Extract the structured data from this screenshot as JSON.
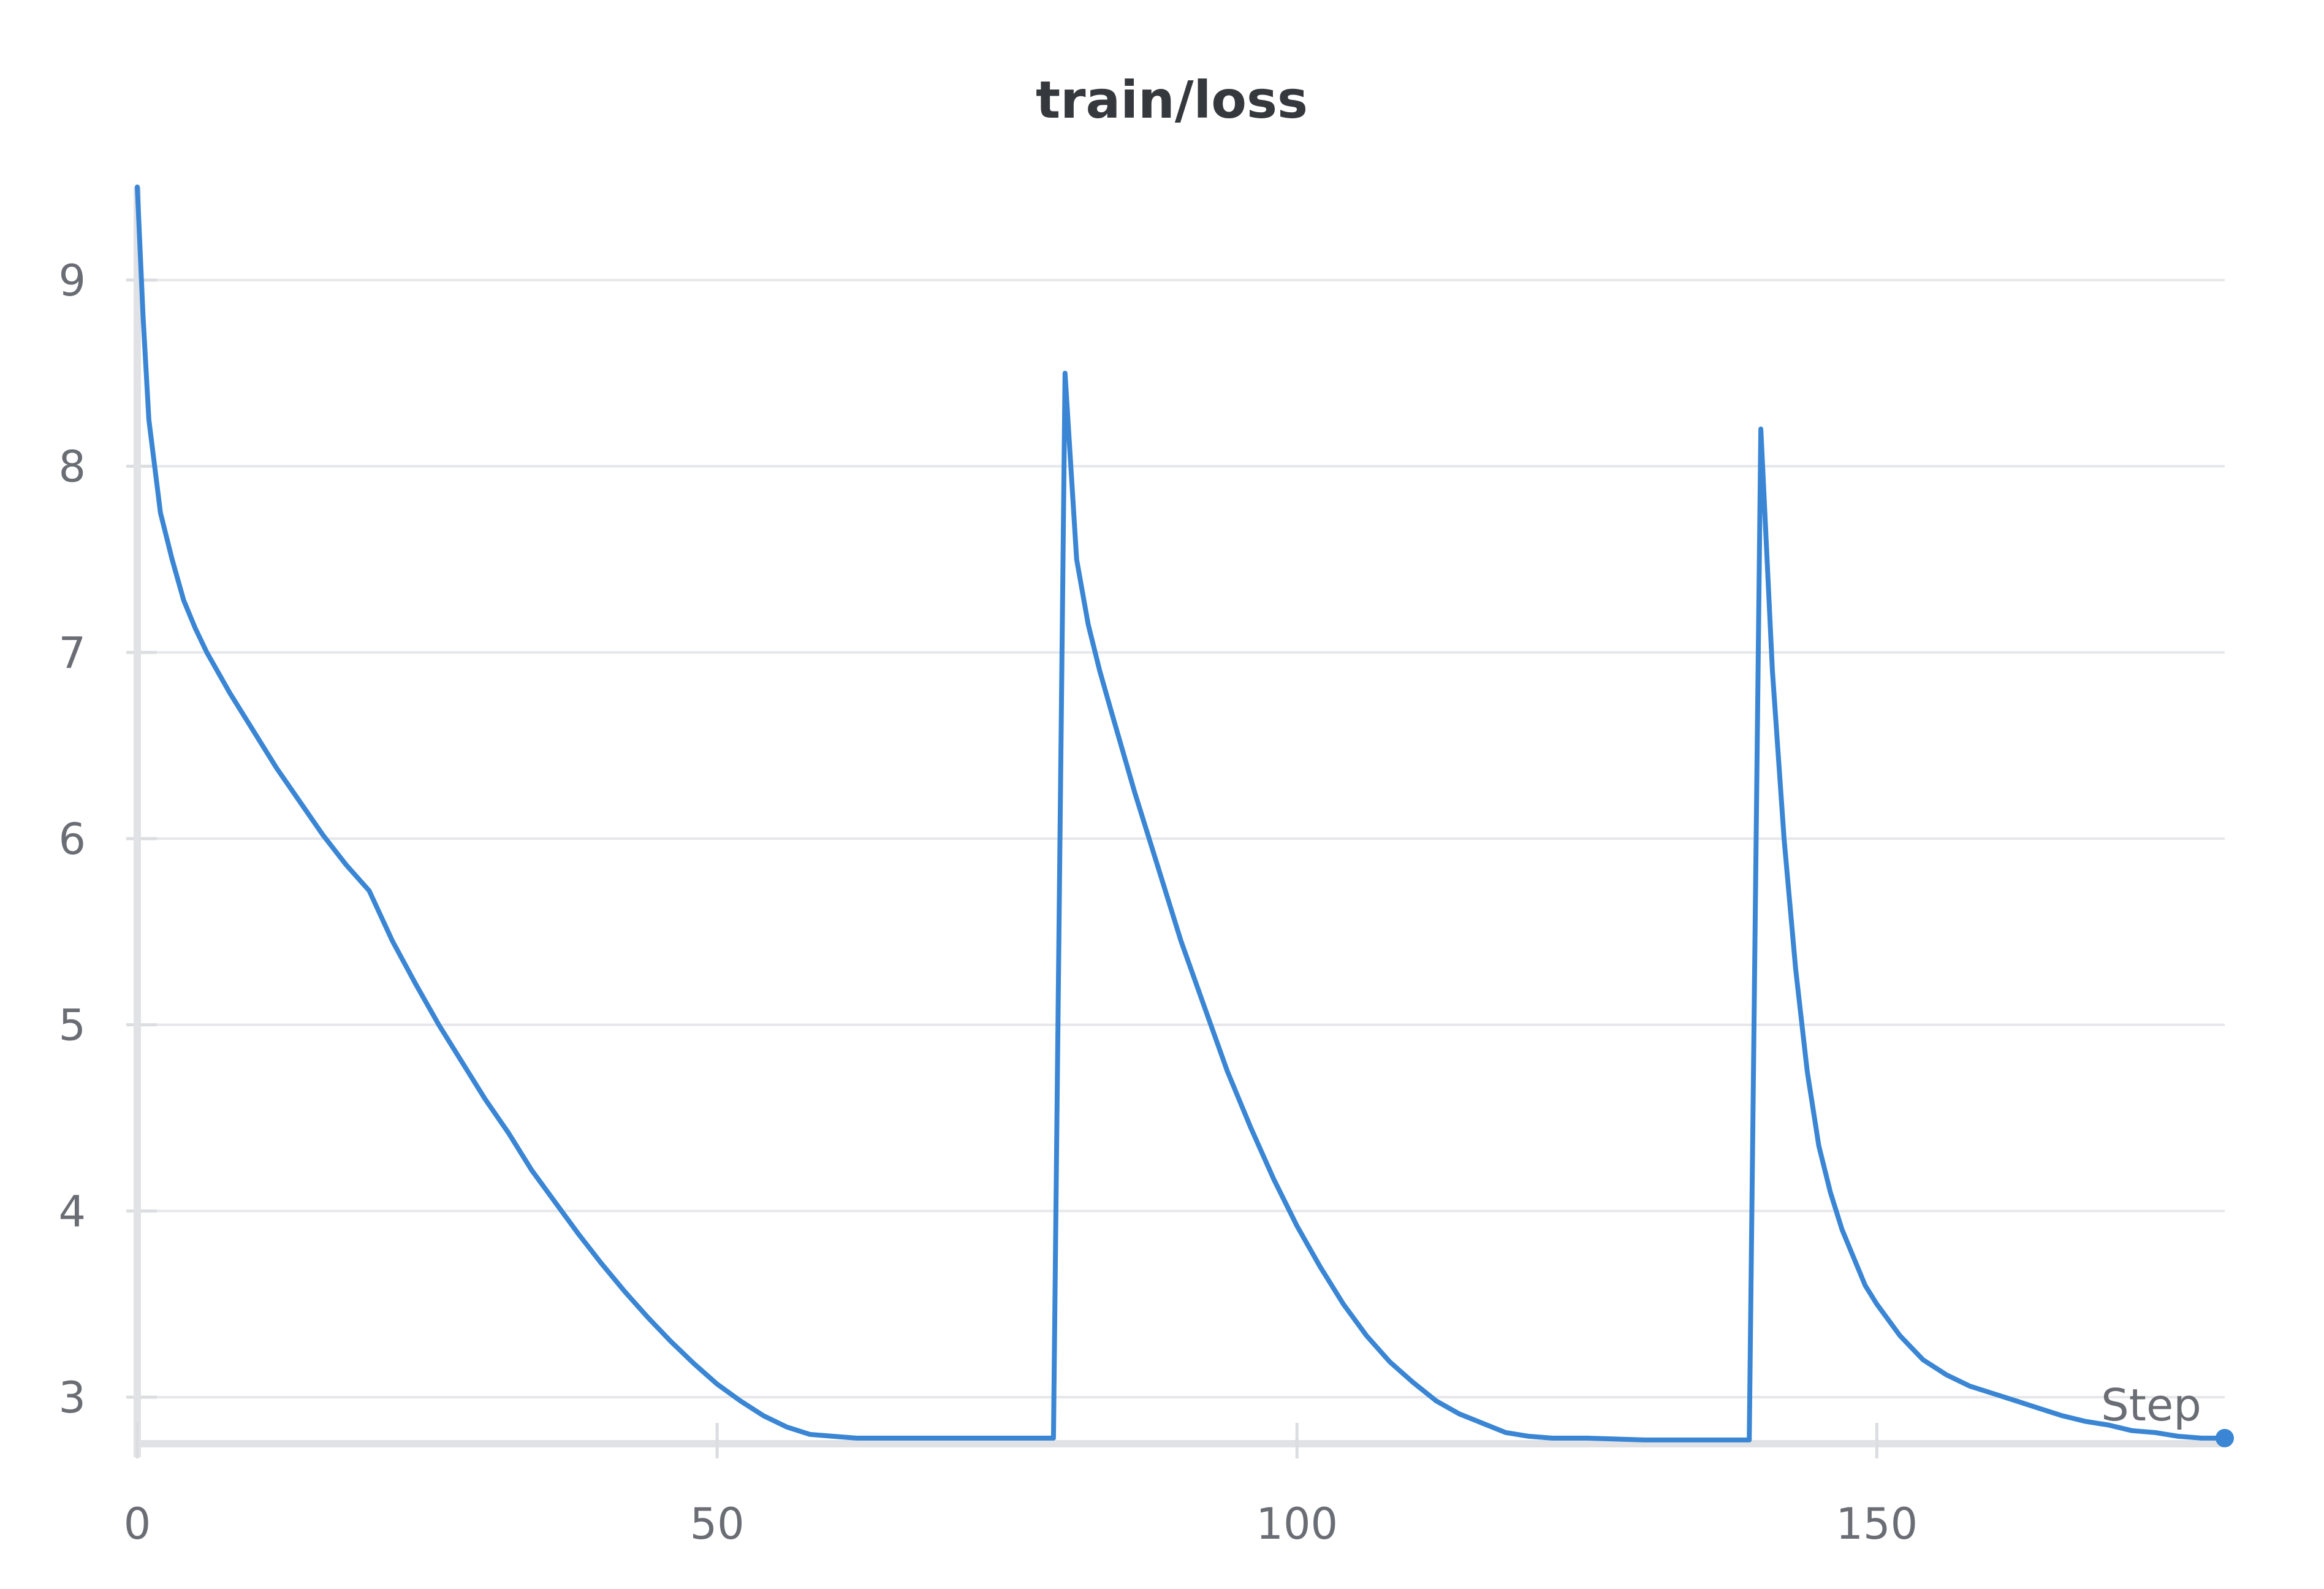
{
  "chart_data": {
    "type": "line",
    "title": "train/loss",
    "xlabel": "Step",
    "ylabel": "",
    "xlim": [
      0,
      180
    ],
    "ylim": [
      2.75,
      9.5
    ],
    "xticks": [
      0,
      50,
      100,
      150
    ],
    "yticks": [
      3,
      4,
      5,
      6,
      7,
      8,
      9
    ],
    "grid": "horizontal",
    "legend": "none",
    "series": [
      {
        "color": "#3a86d4",
        "endpoint_marker": true,
        "x": [
          0,
          0.5,
          1,
          2,
          3,
          4,
          5,
          6,
          8,
          10,
          12,
          14,
          16,
          18,
          20,
          22,
          24,
          26,
          28,
          30,
          32,
          34,
          36,
          38,
          40,
          42,
          44,
          46,
          48,
          50,
          52,
          54,
          56,
          58,
          60,
          62,
          65,
          70,
          75,
          79,
          80,
          81,
          82,
          83,
          84,
          86,
          88,
          90,
          92,
          94,
          96,
          98,
          100,
          102,
          104,
          106,
          108,
          110,
          112,
          114,
          116,
          118,
          120,
          122,
          125,
          130,
          135,
          139,
          140,
          141,
          142,
          143,
          144,
          145,
          146,
          147,
          148,
          149,
          150,
          152,
          154,
          156,
          158,
          160,
          162,
          164,
          166,
          168,
          170,
          172,
          174,
          176,
          178,
          180
        ],
        "y": [
          9.5,
          8.8,
          8.25,
          7.75,
          7.5,
          7.28,
          7.13,
          7.0,
          6.78,
          6.58,
          6.38,
          6.2,
          6.02,
          5.86,
          5.72,
          5.45,
          5.22,
          5.0,
          4.8,
          4.6,
          4.42,
          4.22,
          4.05,
          3.88,
          3.72,
          3.57,
          3.43,
          3.3,
          3.18,
          3.07,
          2.98,
          2.9,
          2.84,
          2.8,
          2.79,
          2.78,
          2.78,
          2.78,
          2.78,
          2.78,
          8.5,
          7.5,
          7.15,
          6.9,
          6.68,
          6.25,
          5.85,
          5.45,
          5.1,
          4.75,
          4.45,
          4.17,
          3.92,
          3.7,
          3.5,
          3.33,
          3.19,
          3.08,
          2.98,
          2.91,
          2.86,
          2.81,
          2.79,
          2.78,
          2.78,
          2.77,
          2.77,
          2.77,
          8.2,
          6.9,
          6.0,
          5.3,
          4.75,
          4.35,
          4.1,
          3.9,
          3.75,
          3.6,
          3.5,
          3.33,
          3.2,
          3.12,
          3.06,
          3.02,
          2.98,
          2.94,
          2.9,
          2.87,
          2.85,
          2.82,
          2.81,
          2.79,
          2.78,
          2.78
        ]
      }
    ]
  }
}
